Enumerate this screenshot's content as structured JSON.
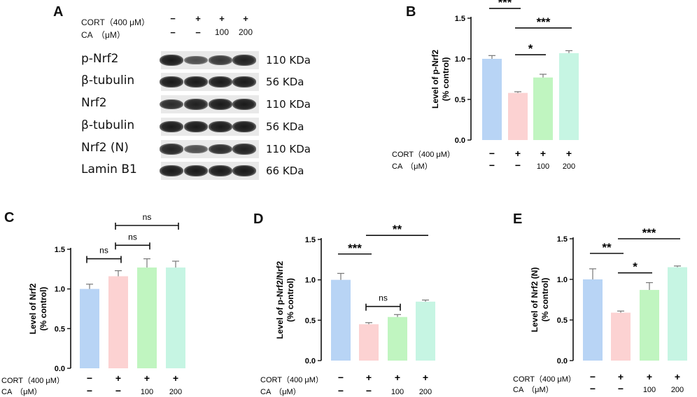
{
  "panel_a": {
    "letter": "A",
    "cort_label": "CORT（400 μM）",
    "ca_label": "CA　（μM）",
    "cort_signs": [
      "−",
      "+",
      "+",
      "+"
    ],
    "ca_signs": [
      "−",
      "−",
      "100",
      "200"
    ],
    "blots": [
      {
        "label": "p-Nrf2",
        "kda": "110 KDa",
        "intensity": [
          1.0,
          0.55,
          0.75,
          0.95
        ]
      },
      {
        "label": "β-tubulin",
        "kda": "56 KDa",
        "intensity": [
          1.0,
          1.0,
          1.0,
          1.0
        ]
      },
      {
        "label": "Nrf2",
        "kda": "110 KDa",
        "intensity": [
          0.85,
          0.95,
          1.0,
          1.0
        ]
      },
      {
        "label": "β-tubulin",
        "kda": "56 KDa",
        "intensity": [
          1.0,
          1.0,
          1.0,
          1.0
        ]
      },
      {
        "label": "Nrf2 (N)",
        "kda": "110 KDa",
        "intensity": [
          0.9,
          0.55,
          0.85,
          0.95
        ]
      },
      {
        "label": "Lamin B1",
        "kda": "66 KDa",
        "intensity": [
          1.0,
          1.0,
          1.0,
          1.0
        ]
      }
    ]
  },
  "colors": [
    "#b8d4f5",
    "#fcd2d2",
    "#c0f5c0",
    "#c6f5e3"
  ],
  "chart_data": [
    {
      "panel": "B",
      "type": "bar",
      "ylabel": "Level of p-Nrf2",
      "ylabel2": "(% control)",
      "ylim": [
        0,
        1.5
      ],
      "yticks": [
        "0.0",
        "0.5",
        "1.0",
        "1.5"
      ],
      "values": [
        1.0,
        0.58,
        0.77,
        1.07
      ],
      "errors": [
        0.04,
        0.015,
        0.04,
        0.03
      ],
      "cort_label": "CORT（400 μM）",
      "ca_label": "CA　（μM）",
      "cort_signs": [
        "−",
        "+",
        "+",
        "+"
      ],
      "ca_signs": [
        "−",
        "−",
        "100",
        "200"
      ],
      "sig": [
        {
          "from": 0,
          "to": 1,
          "label": "***",
          "y": 1.62
        },
        {
          "from": 1,
          "to": 2,
          "label": "*",
          "y": 1.05
        },
        {
          "from": 1,
          "to": 3,
          "label": "***",
          "y": 1.38
        }
      ]
    },
    {
      "panel": "C",
      "type": "bar",
      "ylabel": "Level of Nrf2",
      "ylabel2": "(% control)",
      "ylim": [
        0,
        1.5
      ],
      "yticks": [
        "0.0",
        "0.5",
        "1.0",
        "1.5"
      ],
      "values": [
        1.0,
        1.16,
        1.27,
        1.27
      ],
      "errors": [
        0.06,
        0.07,
        0.11,
        0.08
      ],
      "cort_label": "CORT（400 μM）",
      "ca_label": "CA　（μM）",
      "cort_signs": [
        "−",
        "+",
        "+",
        "+"
      ],
      "ca_signs": [
        "−",
        "−",
        "100",
        "200"
      ],
      "sig": [
        {
          "from": 0,
          "to": 1,
          "label": "ns",
          "y": 1.38
        },
        {
          "from": 1,
          "to": 2,
          "label": "ns",
          "y": 1.55
        },
        {
          "from": 1,
          "to": 3,
          "label": "ns",
          "y": 1.8
        }
      ]
    },
    {
      "panel": "D",
      "type": "bar",
      "ylabel": "Level of p-Nrf2/Nrf2",
      "ylabel2": "(% control)",
      "ylim": [
        0,
        1.5
      ],
      "yticks": [
        "0.0",
        "0.5",
        "1.0",
        "1.5"
      ],
      "values": [
        1.0,
        0.45,
        0.54,
        0.73
      ],
      "errors": [
        0.08,
        0.02,
        0.03,
        0.02
      ],
      "cort_label": "CORT（400 μM）",
      "ca_label": "CA　（μM）",
      "cort_signs": [
        "−",
        "+",
        "+",
        "+"
      ],
      "ca_signs": [
        "−",
        "−",
        "100",
        "200"
      ],
      "sig": [
        {
          "from": 0,
          "to": 1,
          "label": "***",
          "y": 1.32
        },
        {
          "from": 1,
          "to": 2,
          "label": "ns",
          "y": 0.67
        },
        {
          "from": 1,
          "to": 3,
          "label": "**",
          "y": 1.55
        }
      ]
    },
    {
      "panel": "E",
      "type": "bar",
      "ylabel": "Level of Nrf2 (N)",
      "ylabel2": "(% control)",
      "ylim": [
        0,
        1.5
      ],
      "yticks": [
        "0.0",
        "0.5",
        "1.0",
        "1.5"
      ],
      "values": [
        1.0,
        0.59,
        0.87,
        1.15
      ],
      "errors": [
        0.13,
        0.02,
        0.09,
        0.015
      ],
      "cort_label": "CORT（400 μM）",
      "ca_label": "CA　（μM）",
      "cort_signs": [
        "−",
        "+",
        "+",
        "+"
      ],
      "ca_signs": [
        "−",
        "−",
        "100",
        "200"
      ],
      "sig": [
        {
          "from": 0,
          "to": 1,
          "label": "**",
          "y": 1.32
        },
        {
          "from": 1,
          "to": 2,
          "label": "*",
          "y": 1.08
        },
        {
          "from": 1,
          "to": 3,
          "label": "***",
          "y": 1.5
        }
      ]
    }
  ]
}
